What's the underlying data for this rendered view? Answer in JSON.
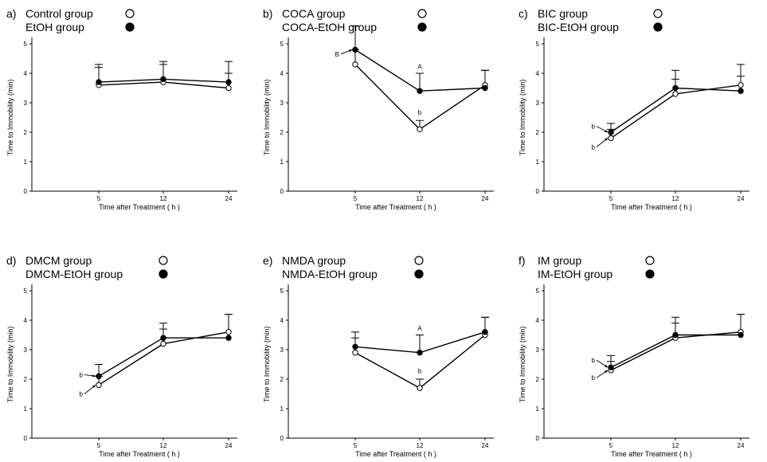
{
  "chart_data": [
    {
      "id": "a",
      "type": "line",
      "panel_letter": "a)",
      "legend": [
        {
          "label": "Control  group",
          "marker": "open"
        },
        {
          "label": "EtOH   group",
          "marker": "filled"
        }
      ],
      "xlabel": "Time  after  Treatment ( h )",
      "ylabel": "Time to Immobility (min)",
      "categories": [
        "5",
        "12",
        "24"
      ],
      "ylim": [
        0,
        5
      ],
      "yticks": [
        "0",
        "1",
        "2",
        "3",
        "4",
        "5"
      ],
      "series": [
        {
          "marker": "open",
          "values": [
            3.6,
            3.7,
            3.5
          ],
          "errors": [
            0.6,
            0.6,
            0.5
          ]
        },
        {
          "marker": "filled",
          "values": [
            3.7,
            3.8,
            3.7
          ],
          "errors": [
            0.6,
            0.6,
            0.7
          ]
        }
      ],
      "annotations": []
    },
    {
      "id": "b",
      "type": "line",
      "panel_letter": "b)",
      "legend": [
        {
          "label": "COCA  group",
          "marker": "open"
        },
        {
          "label": "COCA-EtOH   group",
          "marker": "filled"
        }
      ],
      "xlabel": "Time  after  Treatment ( h )",
      "ylabel": "Time to Immobility (min)",
      "categories": [
        "5",
        "12",
        "24"
      ],
      "ylim": [
        0,
        5
      ],
      "yticks": [
        "0",
        "1",
        "2",
        "3",
        "4",
        "5"
      ],
      "series": [
        {
          "marker": "open",
          "values": [
            4.3,
            2.1,
            3.6
          ],
          "errors": [
            0.5,
            0.3,
            0.5
          ]
        },
        {
          "marker": "filled",
          "values": [
            4.8,
            3.4,
            3.5
          ],
          "errors": [
            0.8,
            0.6,
            0.6
          ]
        }
      ],
      "annotations": [
        {
          "text": "B",
          "x_index": 0,
          "y": 4.65,
          "arrow": true
        },
        {
          "text": "A",
          "x_index": 1,
          "y": 4.15,
          "arrow": false
        },
        {
          "text": "b",
          "x_index": 1,
          "y": 2.6,
          "arrow": false
        }
      ]
    },
    {
      "id": "c",
      "type": "line",
      "panel_letter": "c)",
      "legend": [
        {
          "label": "BIC  group",
          "marker": "open"
        },
        {
          "label": "BIC-EtOH    group",
          "marker": "filled"
        }
      ],
      "xlabel": "Time  after  Treatment ( h )",
      "ylabel": "Time to Immobility (min)",
      "categories": [
        "5",
        "12",
        "24"
      ],
      "ylim": [
        0,
        5
      ],
      "yticks": [
        "0",
        "1",
        "2",
        "3",
        "4",
        "5"
      ],
      "series": [
        {
          "marker": "open",
          "values": [
            1.8,
            3.3,
            3.6
          ],
          "errors": [
            0.3,
            0.5,
            0.7
          ]
        },
        {
          "marker": "filled",
          "values": [
            2.0,
            3.5,
            3.4
          ],
          "errors": [
            0.3,
            0.6,
            0.5
          ]
        }
      ],
      "annotations": [
        {
          "text": "b",
          "x_index": 0,
          "y": 2.2,
          "arrow": true
        },
        {
          "text": "b",
          "x_index": 0,
          "y": 1.5,
          "arrow": true
        }
      ]
    },
    {
      "id": "d",
      "type": "line",
      "panel_letter": "d)",
      "legend": [
        {
          "label": "DMCM  group",
          "marker": "open"
        },
        {
          "label": "DMCM-EtOH   group",
          "marker": "filled"
        }
      ],
      "xlabel": "Time  after  Treatment ( h )",
      "ylabel": "Time to Immobility (min)",
      "categories": [
        "5",
        "12",
        "24"
      ],
      "ylim": [
        0,
        5
      ],
      "yticks": [
        "0",
        "1",
        "2",
        "3",
        "4",
        "5"
      ],
      "series": [
        {
          "marker": "open",
          "values": [
            1.8,
            3.2,
            3.6
          ],
          "errors": [
            0.3,
            0.5,
            0.6
          ]
        },
        {
          "marker": "filled",
          "values": [
            2.1,
            3.4,
            3.4
          ],
          "errors": [
            0.4,
            0.5,
            0.8
          ]
        }
      ],
      "annotations": [
        {
          "text": "b",
          "x_index": 0,
          "y": 2.15,
          "arrow": true
        },
        {
          "text": "b",
          "x_index": 0,
          "y": 1.5,
          "arrow": true
        }
      ]
    },
    {
      "id": "e",
      "type": "line",
      "panel_letter": "e)",
      "legend": [
        {
          "label": "NMDA  group",
          "marker": "open"
        },
        {
          "label": "NMDA-EtOH    group",
          "marker": "filled"
        }
      ],
      "xlabel": "Time  after  Treatment ( h )",
      "ylabel": "Time to Immobility (min)",
      "categories": [
        "5",
        "12",
        "24"
      ],
      "ylim": [
        0,
        5
      ],
      "yticks": [
        "0",
        "1",
        "2",
        "3",
        "4",
        "5"
      ],
      "series": [
        {
          "marker": "open",
          "values": [
            2.9,
            1.7,
            3.5
          ],
          "errors": [
            0.5,
            0.3,
            0.6
          ]
        },
        {
          "marker": "filled",
          "values": [
            3.1,
            2.9,
            3.6
          ],
          "errors": [
            0.5,
            0.6,
            0.5
          ]
        }
      ],
      "annotations": [
        {
          "text": "A",
          "x_index": 1,
          "y": 3.65,
          "arrow": false
        },
        {
          "text": "b",
          "x_index": 1,
          "y": 2.2,
          "arrow": false
        }
      ]
    },
    {
      "id": "f",
      "type": "line",
      "panel_letter": "f)",
      "legend": [
        {
          "label": "IM  group",
          "marker": "open"
        },
        {
          "label": "IM-EtOH    group",
          "marker": "filled"
        }
      ],
      "xlabel": "Time  after  Treatment ( h )",
      "ylabel": "Time to Immobility (min)",
      "categories": [
        "5",
        "12",
        "24"
      ],
      "ylim": [
        0,
        5
      ],
      "yticks": [
        "0",
        "1",
        "2",
        "3",
        "4",
        "5"
      ],
      "series": [
        {
          "marker": "open",
          "values": [
            2.3,
            3.4,
            3.6
          ],
          "errors": [
            0.3,
            0.5,
            0.6
          ]
        },
        {
          "marker": "filled",
          "values": [
            2.4,
            3.5,
            3.5
          ],
          "errors": [
            0.4,
            0.6,
            0.7
          ]
        }
      ],
      "annotations": [
        {
          "text": "b",
          "x_index": 0,
          "y": 2.65,
          "arrow": true
        },
        {
          "text": "b",
          "x_index": 0,
          "y": 2.05,
          "arrow": true
        }
      ]
    }
  ]
}
